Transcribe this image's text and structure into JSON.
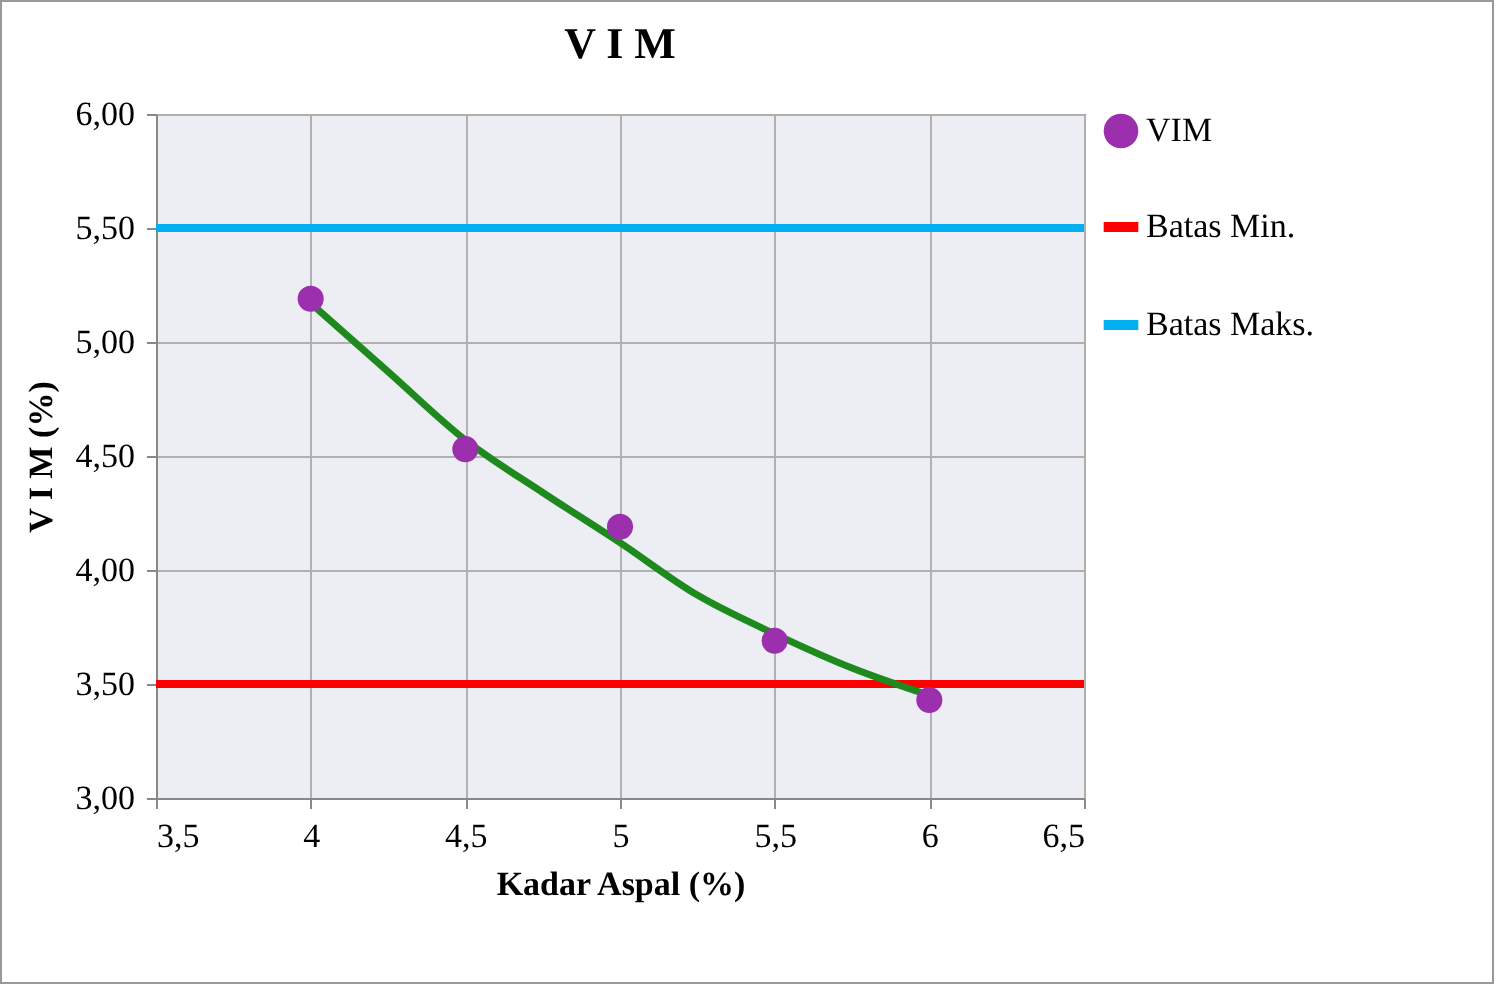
{
  "chart_data": {
    "type": "scatter",
    "title": "V I M",
    "xlabel": "Kadar Aspal (%)",
    "ylabel": "V I M (%)",
    "xlim": [
      3.5,
      6.5
    ],
    "xticks": [
      {
        "value": 3.5,
        "label": "3,5"
      },
      4,
      {
        "value": 4.5,
        "label": "4,5"
      },
      5,
      {
        "value": 5.5,
        "label": "5,5"
      },
      6,
      {
        "value": 6.5,
        "label": "6,5"
      }
    ],
    "ylim": [
      3,
      6
    ],
    "yticks": [
      {
        "value": 3,
        "label": "3,00"
      },
      {
        "value": 3.5,
        "label": "3,50"
      },
      {
        "value": 4,
        "label": "4,00"
      },
      {
        "value": 4.5,
        "label": "4,50"
      },
      {
        "value": 5,
        "label": "5,00"
      },
      {
        "value": 5.5,
        "label": "5,50"
      },
      {
        "value": 6,
        "label": "6,00"
      }
    ],
    "series": [
      {
        "name": "VIM",
        "color": "#9b2fae",
        "marker": "circle",
        "x": [
          4,
          4.5,
          5,
          5.5,
          6
        ],
        "values": [
          5.19,
          4.53,
          4.19,
          3.69,
          3.43
        ]
      },
      {
        "type": "line",
        "color": "#1e8a1e",
        "line_style": "solid",
        "x": [
          4,
          4.25,
          4.5,
          4.75,
          5,
          5.25,
          5.5,
          5.75,
          6
        ],
        "values": [
          5.17,
          4.87,
          4.57,
          4.34,
          4.12,
          3.89,
          3.72,
          3.57,
          3.45
        ]
      }
    ],
    "ref_lines": [
      {
        "axis": "y",
        "value": 3.5,
        "label": "Batas Min.",
        "color": "#ff0000",
        "line_style": "solid"
      },
      {
        "axis": "y",
        "value": 5.5,
        "label": "Batas Maks.",
        "color": "#00b0f0",
        "line_style": "solid"
      }
    ],
    "grid": true,
    "legend": "right"
  }
}
